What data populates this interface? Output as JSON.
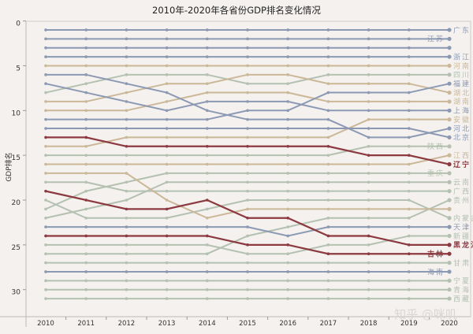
{
  "chart_data": {
    "type": "line",
    "title": "2010年-2020年各省份GDP排名变化情况",
    "xlabel": "",
    "ylabel": "GDP排名",
    "x": [
      "2010",
      "2011",
      "2012",
      "2013",
      "2014",
      "2015",
      "2016",
      "2017",
      "2018",
      "2019",
      "2020"
    ],
    "yticks": [
      "0",
      "5",
      "10",
      "15",
      "20",
      "25",
      "30"
    ],
    "ylim": [
      0,
      32
    ],
    "y_inverted": true,
    "grid": false,
    "legend": "labels at line ends (right)",
    "colors": {
      "blue": "#8c99b3",
      "tan": "#cbb898",
      "green": "#b4c1b0",
      "red": "#8c3a40"
    },
    "series": [
      {
        "name": "广东",
        "color": "blue",
        "values": [
          1,
          1,
          1,
          1,
          1,
          1,
          1,
          1,
          1,
          1,
          1
        ]
      },
      {
        "name": "江苏",
        "color": "blue",
        "label_side": "left",
        "values": [
          2,
          2,
          2,
          2,
          2,
          2,
          2,
          2,
          2,
          2,
          2
        ]
      },
      {
        "color": "blue",
        "values": [
          3,
          3,
          3,
          3,
          3,
          3,
          3,
          3,
          3,
          3,
          3
        ]
      },
      {
        "name": "浙江",
        "color": "blue",
        "values": [
          4,
          4,
          4,
          4,
          4,
          4,
          4,
          4,
          4,
          4,
          4
        ]
      },
      {
        "name": "河南",
        "color": "tan",
        "values": [
          5,
          5,
          5,
          5,
          5,
          5,
          5,
          5,
          5,
          5,
          5
        ]
      },
      {
        "name": "四川",
        "color": "green",
        "values": [
          8,
          7,
          6,
          6,
          6,
          7,
          7,
          6,
          6,
          6,
          6
        ]
      },
      {
        "name": "福建",
        "color": "blue",
        "values": [
          11,
          11,
          11,
          11,
          11,
          10,
          10,
          8,
          8,
          8,
          7
        ]
      },
      {
        "name": "湖北",
        "color": "tan",
        "values": [
          9,
          9,
          8,
          7,
          7,
          6,
          6,
          7,
          7,
          7,
          8
        ]
      },
      {
        "name": "湖南",
        "color": "tan",
        "values": [
          10,
          10,
          10,
          9,
          8,
          8,
          8,
          9,
          9,
          9,
          9
        ]
      },
      {
        "name": "上海",
        "color": "blue",
        "values": [
          7,
          8,
          9,
          10,
          9,
          9,
          9,
          10,
          10,
          10,
          10
        ]
      },
      {
        "name": "安徽",
        "color": "tan",
        "values": [
          14,
          14,
          13,
          13,
          13,
          13,
          13,
          13,
          11,
          11,
          11
        ]
      },
      {
        "name": "河北",
        "color": "blue",
        "values": [
          6,
          6,
          7,
          8,
          10,
          11,
          11,
          11,
          13,
          13,
          12
        ]
      },
      {
        "name": "北京",
        "color": "blue",
        "values": [
          12,
          12,
          12,
          12,
          12,
          12,
          12,
          12,
          12,
          12,
          13
        ]
      },
      {
        "name": "陕西",
        "color": "green",
        "label_side": "left",
        "values": [
          15,
          15,
          15,
          15,
          15,
          15,
          15,
          15,
          14,
          14,
          14
        ]
      },
      {
        "name": "江西",
        "color": "tan",
        "values": [
          16,
          16,
          16,
          16,
          16,
          16,
          16,
          16,
          16,
          16,
          15
        ]
      },
      {
        "name": "辽宁",
        "color": "red",
        "values": [
          13,
          13,
          14,
          14,
          14,
          14,
          14,
          14,
          15,
          15,
          16
        ]
      },
      {
        "name": "重庆",
        "color": "green",
        "label_side": "left",
        "values": [
          21,
          19,
          18,
          17,
          17,
          17,
          17,
          17,
          17,
          17,
          17
        ]
      },
      {
        "name": "云南",
        "color": "green",
        "values": [
          22,
          21,
          20,
          18,
          18,
          18,
          18,
          18,
          18,
          18,
          18
        ]
      },
      {
        "name": "广西",
        "color": "green",
        "values": [
          18,
          18,
          19,
          19,
          19,
          19,
          19,
          19,
          19,
          19,
          19
        ]
      },
      {
        "name": "贵州",
        "color": "green",
        "values": [
          26,
          26,
          26,
          26,
          26,
          24,
          23,
          22,
          22,
          22,
          20
        ]
      },
      {
        "color": "tan",
        "values": [
          17,
          17,
          17,
          20,
          22,
          21,
          21,
          21,
          21,
          21,
          21
        ]
      },
      {
        "name": "内蒙古",
        "color": "green",
        "values": [
          20,
          22,
          22,
          22,
          21,
          20,
          20,
          20,
          20,
          20,
          22
        ]
      },
      {
        "name": "天津",
        "color": "blue",
        "values": [
          23,
          23,
          23,
          23,
          23,
          23,
          24,
          23,
          23,
          23,
          23
        ]
      },
      {
        "name": "新疆",
        "color": "green",
        "values": [
          25,
          25,
          25,
          25,
          25,
          26,
          26,
          25,
          25,
          24,
          24
        ]
      },
      {
        "name": "黑龙江",
        "color": "red",
        "values": [
          19,
          20,
          21,
          21,
          20,
          22,
          22,
          24,
          24,
          25,
          25
        ]
      },
      {
        "name": "吉林",
        "color": "red",
        "label_side": "left",
        "values": [
          24,
          24,
          24,
          24,
          24,
          25,
          25,
          26,
          26,
          26,
          26
        ]
      },
      {
        "name": "甘肃",
        "color": "green",
        "values": [
          27,
          27,
          27,
          27,
          27,
          27,
          27,
          27,
          27,
          27,
          27
        ]
      },
      {
        "name": "海南",
        "color": "blue",
        "label_side": "left",
        "values": [
          28,
          28,
          28,
          28,
          28,
          28,
          28,
          28,
          28,
          28,
          28
        ]
      },
      {
        "name": "宁夏",
        "color": "green",
        "values": [
          29,
          29,
          29,
          29,
          29,
          29,
          29,
          29,
          29,
          29,
          29
        ]
      },
      {
        "name": "青海",
        "color": "green",
        "values": [
          30,
          30,
          30,
          30,
          30,
          30,
          30,
          30,
          30,
          30,
          30
        ]
      },
      {
        "name": "西藏",
        "color": "green",
        "values": [
          31,
          31,
          31,
          31,
          31,
          31,
          31,
          31,
          31,
          31,
          31
        ]
      }
    ]
  },
  "watermark": "知乎 @咪叽"
}
